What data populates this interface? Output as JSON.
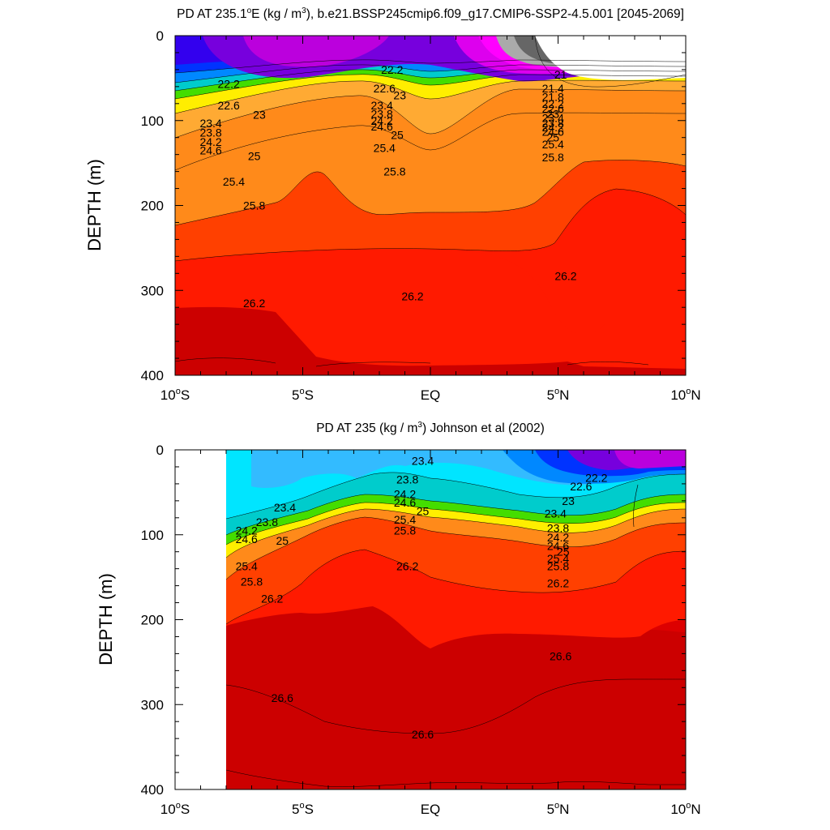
{
  "chart_data": [
    {
      "type": "heatmap",
      "title_main": "PD AT 235.1",
      "title_deg": "o",
      "title_e_units": "E (kg / m",
      "title_sup3": "3",
      "title_rest": "), b.e21.BSSP245cmip6.f09_g17.CMIP6-SSP2-4.5.001 [2045-2069]",
      "ylabel": "DEPTH (m)",
      "xlim": [
        -10,
        10
      ],
      "ylim": [
        400,
        0
      ],
      "y_ticks": [
        "0",
        "100",
        "200",
        "300",
        "400"
      ],
      "x_ticks": [
        {
          "value": -10,
          "num": "10",
          "deg": "o",
          "hemi": "S"
        },
        {
          "value": -5,
          "num": "5",
          "deg": "o",
          "hemi": "S"
        },
        {
          "value": 0,
          "num": "EQ",
          "deg": "",
          "hemi": ""
        },
        {
          "value": 5,
          "num": "5",
          "deg": "o",
          "hemi": "N"
        },
        {
          "value": 10,
          "num": "10",
          "deg": "o",
          "hemi": "N"
        }
      ],
      "data_xrange": [
        -9.5,
        10
      ],
      "land_mask": {
        "x_from": 3.5,
        "description": "white region above sea surface at NE corner"
      },
      "contour_labels": [
        {
          "lat": -7.9,
          "depth": 57,
          "text": "22.2"
        },
        {
          "lat": -7.9,
          "depth": 82,
          "text": "22.6"
        },
        {
          "lat": -6.7,
          "depth": 93,
          "text": "23"
        },
        {
          "lat": -8.6,
          "depth": 103,
          "text": "23.4"
        },
        {
          "lat": -8.6,
          "depth": 114,
          "text": "23.8"
        },
        {
          "lat": -8.6,
          "depth": 125,
          "text": "24.2"
        },
        {
          "lat": -8.6,
          "depth": 135,
          "text": "24.6"
        },
        {
          "lat": -6.9,
          "depth": 142,
          "text": "25"
        },
        {
          "lat": -7.7,
          "depth": 172,
          "text": "25.4"
        },
        {
          "lat": -6.9,
          "depth": 200,
          "text": "25.8"
        },
        {
          "lat": -6.9,
          "depth": 315,
          "text": "26.2"
        },
        {
          "lat": -1.5,
          "depth": 40,
          "text": "22.2"
        },
        {
          "lat": -1.8,
          "depth": 62,
          "text": "22.6"
        },
        {
          "lat": -1.2,
          "depth": 70,
          "text": "23"
        },
        {
          "lat": -1.9,
          "depth": 82,
          "text": "23.4"
        },
        {
          "lat": -1.9,
          "depth": 92,
          "text": "23.8"
        },
        {
          "lat": -1.9,
          "depth": 100,
          "text": "24.2"
        },
        {
          "lat": -1.9,
          "depth": 107,
          "text": "24.6"
        },
        {
          "lat": -1.3,
          "depth": 117,
          "text": "25"
        },
        {
          "lat": -1.8,
          "depth": 132,
          "text": "25.4"
        },
        {
          "lat": -1.4,
          "depth": 160,
          "text": "25.8"
        },
        {
          "lat": -0.7,
          "depth": 307,
          "text": "26.2"
        },
        {
          "lat": 5.1,
          "depth": 46,
          "text": "21"
        },
        {
          "lat": 4.8,
          "depth": 62,
          "text": "21.4"
        },
        {
          "lat": 4.8,
          "depth": 72,
          "text": "21.8"
        },
        {
          "lat": 4.8,
          "depth": 80,
          "text": "22.2"
        },
        {
          "lat": 4.8,
          "depth": 86,
          "text": "22.6"
        },
        {
          "lat": 4.8,
          "depth": 92,
          "text": "23"
        },
        {
          "lat": 4.8,
          "depth": 97,
          "text": "23.4"
        },
        {
          "lat": 4.8,
          "depth": 103,
          "text": "23.8"
        },
        {
          "lat": 4.8,
          "depth": 108,
          "text": "24.2"
        },
        {
          "lat": 4.8,
          "depth": 113,
          "text": "24.6"
        },
        {
          "lat": 4.8,
          "depth": 120,
          "text": "25"
        },
        {
          "lat": 4.8,
          "depth": 128,
          "text": "25.4"
        },
        {
          "lat": 4.8,
          "depth": 143,
          "text": "25.8"
        },
        {
          "lat": 5.3,
          "depth": 283,
          "text": "26.2"
        }
      ]
    },
    {
      "type": "heatmap",
      "title_main": "PD AT 235 (kg / m",
      "title_sup3": "3",
      "title_rest": ") Johnson et al (2002)",
      "ylabel": "DEPTH (m)",
      "xlim": [
        -10,
        10
      ],
      "ylim": [
        400,
        0
      ],
      "y_ticks": [
        "0",
        "100",
        "200",
        "300",
        "400"
      ],
      "x_ticks": [
        {
          "value": -10,
          "num": "10",
          "deg": "o",
          "hemi": "S"
        },
        {
          "value": -5,
          "num": "5",
          "deg": "o",
          "hemi": "S"
        },
        {
          "value": 0,
          "num": "EQ",
          "deg": "",
          "hemi": ""
        },
        {
          "value": 5,
          "num": "5",
          "deg": "o",
          "hemi": "N"
        },
        {
          "value": 10,
          "num": "10",
          "deg": "o",
          "hemi": "N"
        }
      ],
      "data_xrange": [
        -8,
        10
      ],
      "contour_labels": [
        {
          "lat": -0.3,
          "depth": 13,
          "text": "23.4"
        },
        {
          "lat": -5.7,
          "depth": 68,
          "text": "23.4"
        },
        {
          "lat": -0.9,
          "depth": 35,
          "text": "23.8"
        },
        {
          "lat": -1.0,
          "depth": 52,
          "text": "24.2"
        },
        {
          "lat": -1.0,
          "depth": 62,
          "text": "24.6"
        },
        {
          "lat": -0.3,
          "depth": 72,
          "text": "25"
        },
        {
          "lat": -1.0,
          "depth": 82,
          "text": "25.4"
        },
        {
          "lat": -1.0,
          "depth": 95,
          "text": "25.8"
        },
        {
          "lat": -0.9,
          "depth": 137,
          "text": "26.2"
        },
        {
          "lat": -6.4,
          "depth": 85,
          "text": "23.8"
        },
        {
          "lat": -7.2,
          "depth": 95,
          "text": "24.2"
        },
        {
          "lat": -7.2,
          "depth": 105,
          "text": "24.6"
        },
        {
          "lat": -5.8,
          "depth": 107,
          "text": "25"
        },
        {
          "lat": -7.2,
          "depth": 137,
          "text": "25.4"
        },
        {
          "lat": -7.0,
          "depth": 155,
          "text": "25.8"
        },
        {
          "lat": -6.2,
          "depth": 175,
          "text": "26.2"
        },
        {
          "lat": -5.8,
          "depth": 292,
          "text": "26.6"
        },
        {
          "lat": -0.3,
          "depth": 335,
          "text": "26.6"
        },
        {
          "lat": 5.1,
          "depth": 243,
          "text": "26.6"
        },
        {
          "lat": 6.5,
          "depth": 33,
          "text": "22.2"
        },
        {
          "lat": 5.9,
          "depth": 43,
          "text": "22.6"
        },
        {
          "lat": 5.4,
          "depth": 60,
          "text": "23"
        },
        {
          "lat": 4.9,
          "depth": 75,
          "text": "23.4"
        },
        {
          "lat": 5.0,
          "depth": 92,
          "text": "23.8"
        },
        {
          "lat": 5.0,
          "depth": 103,
          "text": "24.2"
        },
        {
          "lat": 5.0,
          "depth": 113,
          "text": "24.6"
        },
        {
          "lat": 5.2,
          "depth": 120,
          "text": "25"
        },
        {
          "lat": 5.0,
          "depth": 128,
          "text": "25.4"
        },
        {
          "lat": 5.0,
          "depth": 137,
          "text": "25.8"
        },
        {
          "lat": 5.0,
          "depth": 157,
          "text": "26.2"
        }
      ]
    }
  ]
}
